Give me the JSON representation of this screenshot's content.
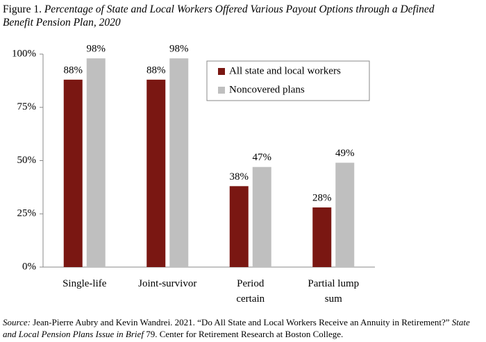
{
  "chart_data": {
    "type": "bar",
    "title_prefix": "Figure 1.",
    "title": "Percentage of State and Local Workers Offered Various Payout Options through a Defined Benefit Pension Plan, 2020",
    "categories": [
      "Single-life",
      "Joint-survivor",
      "Period\ncertain",
      "Partial lump\nsum"
    ],
    "series": [
      {
        "name": "All state and local workers",
        "color": "#7a1712",
        "values": [
          88,
          88,
          38,
          28
        ],
        "value_labels": [
          "88%",
          "88%",
          "38%",
          "28%"
        ]
      },
      {
        "name": "Noncovered plans",
        "color": "#bfbfbf",
        "values": [
          98,
          98,
          47,
          49
        ],
        "value_labels": [
          "98%",
          "98%",
          "47%",
          "49%"
        ]
      }
    ],
    "ylim": [
      0,
      100
    ],
    "yticks": [
      {
        "value": 0,
        "label": "0%"
      },
      {
        "value": 25,
        "label": "25%"
      },
      {
        "value": 50,
        "label": "50%"
      },
      {
        "value": 75,
        "label": "75%"
      },
      {
        "value": 100,
        "label": "100%"
      }
    ],
    "grid": false,
    "legend": "upper right"
  },
  "source": {
    "label": "Source:",
    "text1": "Jean-Pierre Aubry and Kevin Wandrei. 2021. “Do All State and Local Workers Receive an Annuity in Retirement?”",
    "italic": "State and Local Pension Plans Issue in Brief",
    "text2": "79. Center for Retirement Research at Boston College."
  }
}
